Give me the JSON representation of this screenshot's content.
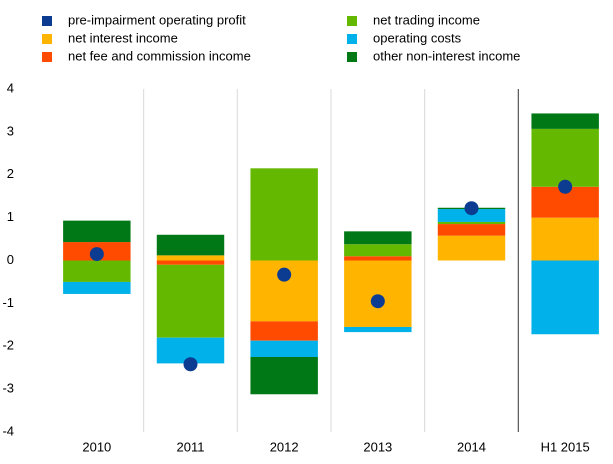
{
  "chart_data": {
    "type": "bar",
    "stacked": true,
    "categories": [
      "2010",
      "2011",
      "2012",
      "2013",
      "2014",
      "H1 2015"
    ],
    "series": [
      {
        "name": "pre-impairment operating profit",
        "type": "scatter",
        "color": "#0c3c91",
        "values": [
          0.15,
          -2.42,
          -0.33,
          -0.95,
          1.22,
          1.72
        ]
      },
      {
        "name": "net interest income",
        "color": "#ffb400",
        "values": [
          0,
          0.12,
          -1.42,
          -1.55,
          0.58,
          1.0
        ]
      },
      {
        "name": "net fee and commission income",
        "color": "#ff4b00",
        "values": [
          0.43,
          -0.1,
          -0.45,
          0.1,
          0.27,
          0.72
        ]
      },
      {
        "name": "net trading income",
        "color": "#65b800",
        "values": [
          -0.5,
          -1.7,
          2.15,
          0.28,
          0.05,
          1.35
        ]
      },
      {
        "name": "operating costs",
        "color": "#00b1ea",
        "values": [
          -0.28,
          -0.6,
          -0.38,
          -0.12,
          0.3,
          -1.72
        ]
      },
      {
        "name": "other non-interest income",
        "color": "#007816",
        "values": [
          0.5,
          0.48,
          -0.87,
          0.3,
          0.03,
          0.36
        ]
      }
    ],
    "ylim": [
      -4,
      4
    ],
    "yticks": [
      -4,
      -3,
      -2,
      -1,
      0,
      1,
      2,
      3,
      4
    ]
  }
}
